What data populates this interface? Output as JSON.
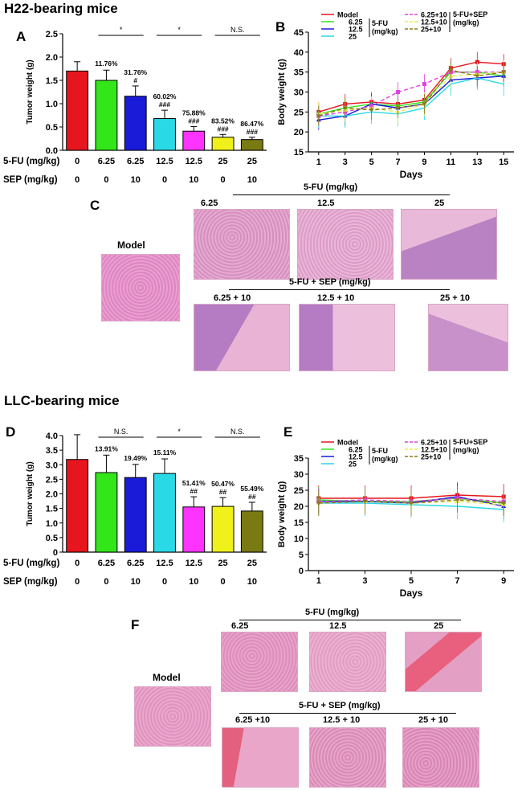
{
  "colors": {
    "model": "#e6161e",
    "g625": "#33e61a",
    "g125": "#1a1ad9",
    "g125sep": "#ff33ff",
    "g25": "#f0f01a",
    "g25b": "#2ad9e6",
    "g25sep": "#7a7a12",
    "dash625": "#e040e0",
    "dash125": "#e8e85a",
    "dash25": "#8b7a1a",
    "tissue1": "#e9b3d6",
    "tissue2": "#d88fc3"
  },
  "h22": {
    "section_title": "H22-bearing mice",
    "panel_a": {
      "letter": "A",
      "chart_data": {
        "type": "bar",
        "ylabel": "Tumor weight (g)",
        "ylim": [
          0,
          2.5
        ],
        "yticks": [
          "0.0",
          "0.5",
          "1.0",
          "1.5",
          "2.0",
          "2.5"
        ],
        "values": [
          1.7,
          1.5,
          1.16,
          0.68,
          0.41,
          0.28,
          0.23
        ],
        "errors": [
          0.2,
          0.22,
          0.22,
          0.18,
          0.1,
          0.06,
          0.05
        ],
        "bar_colors": [
          "#e6161e",
          "#33e61a",
          "#1a1ad9",
          "#2ad9e6",
          "#ff33ff",
          "#f0f01a",
          "#7a7a12"
        ],
        "annotations": [
          [
            "",
            ""
          ],
          [
            "11.76%",
            ""
          ],
          [
            "31.76%",
            "#"
          ],
          [
            "60.02%",
            "###"
          ],
          [
            "75.88%",
            "###"
          ],
          [
            "83.52%",
            "###"
          ],
          [
            "86.47%",
            "###"
          ]
        ],
        "comparisons": [
          "*",
          "*",
          "N.S."
        ],
        "row1_label": "5-FU (mg/kg)",
        "row1": [
          "0",
          "6.25",
          "6.25",
          "12.5",
          "12.5",
          "25",
          "25"
        ],
        "row2_label": "SEP (mg/kg)",
        "row2": [
          "0",
          "0",
          "10",
          "0",
          "10",
          "0",
          "10"
        ]
      }
    },
    "panel_b": {
      "letter": "B",
      "chart_data": {
        "type": "line",
        "xlabel": "Days",
        "ylabel": "Body weight (g)",
        "x": [
          1,
          3,
          5,
          7,
          9,
          11,
          13,
          15
        ],
        "ylim": [
          15,
          45
        ],
        "yticks": [
          "15",
          "20",
          "25",
          "30",
          "35",
          "40",
          "45"
        ],
        "series": [
          {
            "name": "Model",
            "values": [
              25,
              27,
              27.5,
              27,
              28,
              36,
              37.5,
              37
            ],
            "err": 2.5
          },
          {
            "name": "6.25",
            "values": [
              24.5,
              26,
              27,
              26.5,
              27.5,
              35,
              35,
              34
            ],
            "err": 2.5
          },
          {
            "name": "12.5",
            "values": [
              23,
              24,
              27,
              26,
              27,
              33,
              33.5,
              34
            ],
            "err": 2.5
          },
          {
            "name": "25",
            "values": [
              24,
              24,
              25,
              24.5,
              26,
              32,
              33.5,
              32
            ],
            "err": 3
          },
          {
            "name": "6.25+10",
            "values": [
              24,
              25,
              26.5,
              30,
              32,
              35,
              35,
              35
            ],
            "err": 2.5
          },
          {
            "name": "12.5+10",
            "values": [
              24.5,
              25.5,
              26,
              25,
              27,
              34,
              34.5,
              35
            ],
            "err": 3
          },
          {
            "name": "25+10",
            "values": [
              24,
              26,
              25.5,
              26,
              27,
              35.5,
              34,
              35
            ],
            "err": 2.5
          }
        ],
        "legend_group1": "5-FU (mg/kg)",
        "legend_group2": "5-FU+SEP (mg/kg)"
      }
    },
    "panel_c": {
      "letter": "C",
      "top_header": "5-FU (mg/kg)",
      "bottom_header": "5-FU + SEP (mg/kg)",
      "model_label": "Model",
      "top_labels": [
        "6.25",
        "12.5",
        "25"
      ],
      "bottom_labels": [
        "6.25 + 10",
        "12.5 + 10",
        "25 + 10"
      ]
    }
  },
  "llc": {
    "section_title": "LLC-bearing mice",
    "panel_d": {
      "letter": "D",
      "chart_data": {
        "type": "bar",
        "ylabel": "Tumor weight (g)",
        "ylim": [
          0,
          4.0
        ],
        "yticks": [
          "0",
          "0.5",
          "1.0",
          "1.5",
          "2.0",
          "2.5",
          "3.0",
          "3.5",
          "4.0"
        ],
        "values": [
          3.18,
          2.73,
          2.56,
          2.7,
          1.55,
          1.57,
          1.41
        ],
        "errors": [
          0.85,
          0.6,
          0.45,
          0.5,
          0.35,
          0.3,
          0.3
        ],
        "bar_colors": [
          "#e6161e",
          "#33e61a",
          "#1a1ad9",
          "#2ad9e6",
          "#ff33ff",
          "#f0f01a",
          "#7a7a12"
        ],
        "annotations": [
          [
            "",
            ""
          ],
          [
            "13.91%",
            ""
          ],
          [
            "19.49%",
            ""
          ],
          [
            "15.11%",
            ""
          ],
          [
            "51.41%",
            "##"
          ],
          [
            "50.47%",
            "##"
          ],
          [
            "55.49%",
            "##"
          ]
        ],
        "comparisons": [
          "N.S.",
          "*",
          "N.S."
        ],
        "row1_label": "5-FU (mg/kg)",
        "row1": [
          "0",
          "6.25",
          "6.25",
          "12.5",
          "12.5",
          "25",
          "25"
        ],
        "row2_label": "SEP (mg/kg)",
        "row2": [
          "0",
          "0",
          "10",
          "0",
          "10",
          "0",
          "10"
        ]
      }
    },
    "panel_e": {
      "letter": "E",
      "chart_data": {
        "type": "line",
        "xlabel": "Days",
        "ylabel": "Body weight (g)",
        "x": [
          1,
          3,
          5,
          7,
          9
        ],
        "ylim": [
          0,
          35
        ],
        "yticks": [
          "0",
          "5",
          "10",
          "15",
          "20",
          "25",
          "30",
          "35"
        ],
        "series": [
          {
            "name": "Model",
            "values": [
              22.5,
              22.5,
              22.5,
              23.5,
              23
            ],
            "err": 4
          },
          {
            "name": "6.25",
            "values": [
              22,
              21.5,
              21.5,
              22.5,
              21
            ],
            "err": 4
          },
          {
            "name": "12.5",
            "values": [
              21.5,
              21.5,
              21,
              23,
              20
            ],
            "err": 4
          },
          {
            "name": "25",
            "values": [
              21,
              21,
              20.5,
              20,
              19
            ],
            "err": 4
          },
          {
            "name": "6.25+10",
            "values": [
              21.5,
              22,
              21.5,
              22.5,
              21.5
            ],
            "err": 4
          },
          {
            "name": "12.5+10",
            "values": [
              21,
              21.5,
              21,
              21.5,
              20.5
            ],
            "err": 4
          },
          {
            "name": "25+10",
            "values": [
              21,
              21.5,
              21,
              22,
              21
            ],
            "err": 4
          }
        ],
        "legend_group1": "5-FU (mg/kg)",
        "legend_group2": "5-FU+SEP (mg/kg)"
      }
    },
    "panel_f": {
      "letter": "F",
      "top_header": "5-FU (mg/kg)",
      "bottom_header": "5-FU + SEP (mg/kg)",
      "model_label": "Model",
      "top_labels": [
        "6.25",
        "12.5",
        "25"
      ],
      "bottom_labels": [
        "6.25 +10",
        "12.5 + 10",
        "25 + 10"
      ]
    }
  }
}
